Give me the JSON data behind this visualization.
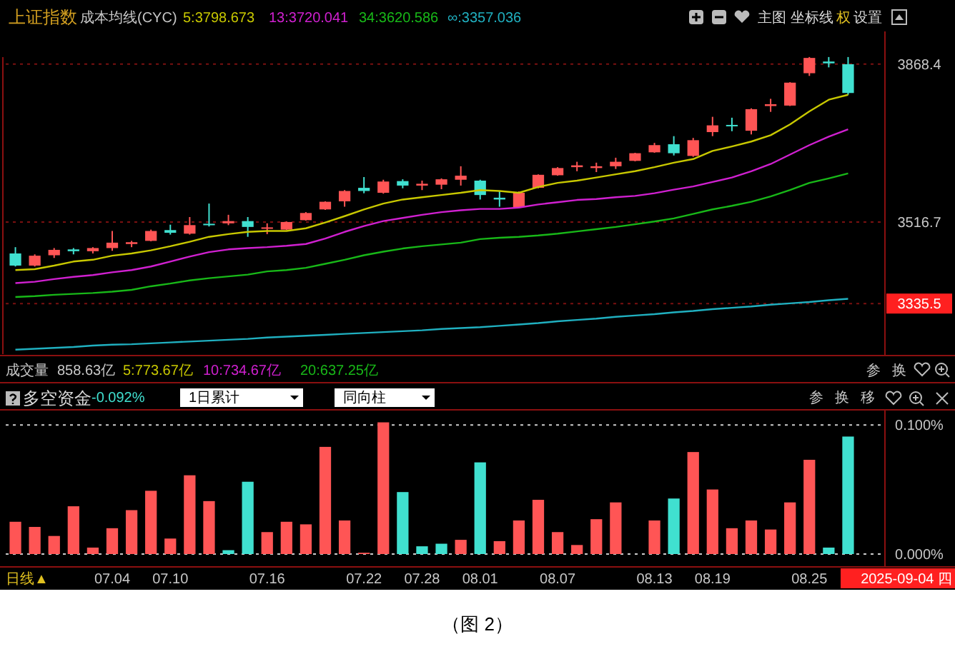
{
  "chart_data": [
    {
      "type": "candlestick",
      "title": "上证指数",
      "legend_title": "成本均线(CYC)",
      "legend": "top left",
      "tick_labels": "y",
      "grid": "y",
      "categories": [
        null,
        null,
        null,
        null,
        null,
        null,
        null,
        null,
        null,
        null,
        null,
        null,
        null,
        null,
        null,
        null,
        null,
        null,
        null,
        null,
        null,
        null,
        null,
        null,
        null,
        null,
        null,
        null,
        null,
        null,
        null,
        null,
        null,
        null,
        null,
        null,
        null,
        null,
        null,
        null,
        null,
        null,
        null,
        null
      ],
      "ylim": [
        3223,
        3941
      ],
      "yticks": [
        3335.5,
        3516.7,
        3868.4
      ],
      "ohlc": [
        [
          3447,
          3461,
          3418,
          3420
        ],
        [
          3420,
          3445,
          3418,
          3442
        ],
        [
          3443,
          3459,
          3437,
          3455
        ],
        [
          3456,
          3459,
          3445,
          3452
        ],
        [
          3452,
          3461,
          3447,
          3459
        ],
        [
          3459,
          3497,
          3453,
          3471
        ],
        [
          3468,
          3475,
          3461,
          3472
        ],
        [
          3475,
          3500,
          3474,
          3497
        ],
        [
          3499,
          3511,
          3489,
          3493
        ],
        [
          3491,
          3528,
          3489,
          3510
        ],
        [
          3513,
          3558,
          3507,
          3510
        ],
        [
          3514,
          3533,
          3510,
          3519
        ],
        [
          3519,
          3528,
          3484,
          3506
        ],
        [
          3503,
          3514,
          3490,
          3505
        ],
        [
          3500,
          3518,
          3499,
          3517
        ],
        [
          3521,
          3539,
          3520,
          3537
        ],
        [
          3545,
          3563,
          3544,
          3562
        ],
        [
          3563,
          3588,
          3551,
          3586
        ],
        [
          3593,
          3617,
          3581,
          3586
        ],
        [
          3582,
          3611,
          3580,
          3607
        ],
        [
          3608,
          3612,
          3592,
          3598
        ],
        [
          3598,
          3609,
          3588,
          3602
        ],
        [
          3600,
          3614,
          3590,
          3612
        ],
        [
          3611,
          3641,
          3598,
          3620
        ],
        [
          3609,
          3611,
          3567,
          3577
        ],
        [
          3571,
          3586,
          3551,
          3567
        ],
        [
          3550,
          3585,
          3549,
          3582
        ],
        [
          3593,
          3623,
          3592,
          3622
        ],
        [
          3621,
          3639,
          3620,
          3637
        ],
        [
          3639,
          3651,
          3630,
          3643
        ],
        [
          3637,
          3649,
          3628,
          3641
        ],
        [
          3641,
          3660,
          3635,
          3651
        ],
        [
          3653,
          3671,
          3652,
          3670
        ],
        [
          3672,
          3693,
          3671,
          3688
        ],
        [
          3690,
          3708,
          3665,
          3670
        ],
        [
          3664,
          3704,
          3662,
          3699
        ],
        [
          3717,
          3751,
          3708,
          3732
        ],
        [
          3733,
          3749,
          3719,
          3730
        ],
        [
          3720,
          3770,
          3712,
          3768
        ],
        [
          3775,
          3791,
          3762,
          3779
        ],
        [
          3776,
          3828,
          3775,
          3827
        ],
        [
          3848,
          3884,
          3842,
          3882
        ],
        [
          3874,
          3884,
          3861,
          3870
        ],
        [
          3868,
          3884,
          3800,
          3804
        ]
      ],
      "colors": [
        "#40e0d0",
        "#ff5555",
        "#ff5555",
        "#40e0d0",
        "#ff5555",
        "#ff5555",
        "#ff5555",
        "#ff5555",
        "#40e0d0",
        "#ff5555",
        "#40e0d0",
        "#ff5555",
        "#40e0d0",
        "#ff5555",
        "#ff5555",
        "#ff5555",
        "#ff5555",
        "#ff5555",
        "#40e0d0",
        "#ff5555",
        "#40e0d0",
        "#ff5555",
        "#ff5555",
        "#ff5555",
        "#40e0d0",
        "#40e0d0",
        "#ff5555",
        "#ff5555",
        "#ff5555",
        "#ff5555",
        "#ff5555",
        "#ff5555",
        "#ff5555",
        "#ff5555",
        "#40e0d0",
        "#ff5555",
        "#ff5555",
        "#40e0d0",
        "#ff5555",
        "#ff5555",
        "#ff5555",
        "#ff5555",
        "#40e0d0",
        "#40e0d0"
      ],
      "series": [
        {
          "type": "line",
          "name": "5:3798.673",
          "color": "#c8c800",
          "values": [
            3410,
            3412,
            3420,
            3429,
            3433,
            3442,
            3447,
            3454,
            3463,
            3473,
            3484,
            3490,
            3495,
            3497,
            3497,
            3503,
            3516,
            3530,
            3545,
            3558,
            3567,
            3572,
            3577,
            3582,
            3588,
            3586,
            3582,
            3595,
            3604,
            3609,
            3616,
            3623,
            3630,
            3639,
            3649,
            3657,
            3675,
            3685,
            3696,
            3710,
            3734,
            3763,
            3789,
            3800
          ]
        },
        {
          "type": "line",
          "name": "13:3720.041",
          "color": "#d020d0",
          "values": [
            3381,
            3384,
            3390,
            3395,
            3399,
            3405,
            3410,
            3418,
            3429,
            3440,
            3450,
            3456,
            3459,
            3461,
            3464,
            3468,
            3480,
            3495,
            3508,
            3519,
            3526,
            3533,
            3539,
            3543,
            3546,
            3546,
            3549,
            3556,
            3561,
            3566,
            3568,
            3572,
            3575,
            3581,
            3589,
            3596,
            3606,
            3616,
            3630,
            3646,
            3667,
            3688,
            3707,
            3723
          ]
        },
        {
          "type": "line",
          "name": "34:3620.586",
          "color": "#18b818",
          "values": [
            3350,
            3352,
            3355,
            3357,
            3359,
            3362,
            3366,
            3374,
            3380,
            3387,
            3392,
            3396,
            3400,
            3407,
            3410,
            3415,
            3424,
            3433,
            3443,
            3451,
            3458,
            3463,
            3467,
            3471,
            3479,
            3482,
            3484,
            3487,
            3491,
            3496,
            3501,
            3506,
            3512,
            3518,
            3525,
            3535,
            3545,
            3553,
            3562,
            3574,
            3588,
            3604,
            3614,
            3625
          ]
        },
        {
          "type": "line",
          "name": "∞:3357.036",
          "color": "#20b0c0",
          "values": [
            3233,
            3235,
            3237,
            3239,
            3242,
            3244,
            3245,
            3247,
            3249,
            3251,
            3253,
            3255,
            3257,
            3260,
            3262,
            3264,
            3266,
            3268,
            3270,
            3272,
            3274,
            3276,
            3279,
            3281,
            3283,
            3286,
            3289,
            3292,
            3296,
            3299,
            3302,
            3306,
            3309,
            3312,
            3316,
            3319,
            3323,
            3326,
            3329,
            3333,
            3336,
            3339,
            3343,
            3346
          ]
        }
      ],
      "annotations": [
        "主图",
        "坐标线",
        "权",
        "设置"
      ]
    },
    {
      "type": "bar",
      "title": "多空资金",
      "grid": "y",
      "categories": [
        null,
        null,
        null,
        null,
        null,
        "07.04",
        null,
        null,
        "07.10",
        null,
        null,
        null,
        null,
        "07.16",
        null,
        null,
        null,
        null,
        "07.22",
        null,
        null,
        "07.28",
        null,
        null,
        "08.01",
        null,
        null,
        null,
        "08.07",
        null,
        null,
        null,
        null,
        "08.13",
        null,
        null,
        "08.19",
        null,
        null,
        null,
        null,
        "08.25",
        null,
        null
      ],
      "ylim": [
        0,
        0.1117
      ],
      "yticks": [
        {
          "value": 0,
          "label": "0.000%"
        },
        {
          "value": 0.1,
          "label": "0.100%"
        }
      ],
      "values": [
        0.025,
        0.021,
        0.014,
        0.037,
        0.005,
        0.02,
        0.034,
        0.049,
        0.012,
        0.061,
        0.041,
        0.003,
        0.056,
        0.017,
        0.025,
        0.023,
        0.083,
        0.026,
        0.001,
        0.102,
        0.048,
        0.006,
        0.008,
        0.011,
        0.071,
        0.01,
        0.026,
        0.042,
        0.017,
        0.007,
        0.027,
        0.04,
        null,
        0.026,
        0.043,
        0.079,
        0.05,
        0.02,
        0.026,
        0.019,
        0.04,
        0.073,
        0.005,
        0.091
      ],
      "colors": [
        "#ff5555",
        "#ff5555",
        "#ff5555",
        "#ff5555",
        "#ff5555",
        "#ff5555",
        "#ff5555",
        "#ff5555",
        "#ff5555",
        "#ff5555",
        "#ff5555",
        "#40e0d0",
        "#40e0d0",
        "#ff5555",
        "#ff5555",
        "#ff5555",
        "#ff5555",
        "#ff5555",
        "#ff5555",
        "#ff5555",
        "#40e0d0",
        "#40e0d0",
        "#40e0d0",
        "#ff5555",
        "#40e0d0",
        "#ff5555",
        "#ff5555",
        "#ff5555",
        "#ff5555",
        "#ff5555",
        "#ff5555",
        "#ff5555",
        "#ff5555",
        "#ff5555",
        "#40e0d0",
        "#ff5555",
        "#ff5555",
        "#ff5555",
        "#ff5555",
        "#ff5555",
        "#ff5555",
        "#ff5555",
        "#40e0d0",
        "#40e0d0"
      ],
      "annotations": [
        "成交量",
        "858.63亿",
        "5:773.67亿",
        "10:734.67亿",
        "20:637.25亿",
        "参",
        "换",
        "-0.092%",
        "1日累计",
        "同向柱",
        "参",
        "换",
        "移",
        "日线▲",
        "2025-09-04 四",
        "（图 2）"
      ]
    }
  ]
}
